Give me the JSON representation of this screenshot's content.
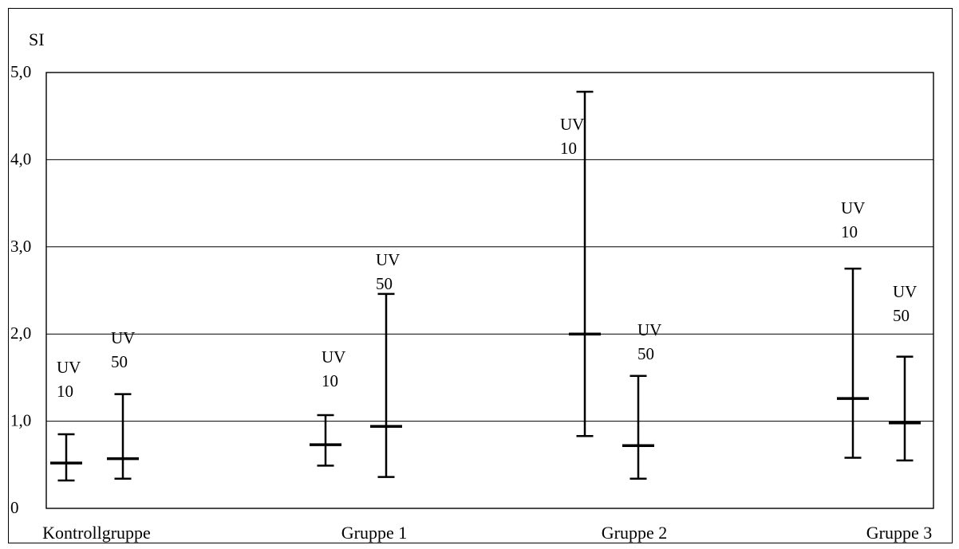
{
  "chart_data": {
    "type": "error-bar",
    "ylabel": "SI",
    "ylim": [
      0,
      5
    ],
    "yticks": [
      {
        "value": 0,
        "label": "0"
      },
      {
        "value": 1,
        "label": "1,0"
      },
      {
        "value": 2,
        "label": "2,0"
      },
      {
        "value": 3,
        "label": "3,0"
      },
      {
        "value": 4,
        "label": "4,0"
      },
      {
        "value": 5,
        "label": "5,0"
      }
    ],
    "grid": true,
    "groups": [
      {
        "category": "Kontrollgruppe",
        "bars": [
          {
            "name_line1": "UV",
            "name_line2": "10",
            "center": 0.52,
            "low": 0.32,
            "high": 0.85
          },
          {
            "name_line1": "UV",
            "name_line2": "50",
            "center": 0.57,
            "low": 0.34,
            "high": 1.31
          }
        ]
      },
      {
        "category": "Gruppe 1",
        "bars": [
          {
            "name_line1": "UV",
            "name_line2": "10",
            "center": 0.73,
            "low": 0.49,
            "high": 1.07
          },
          {
            "name_line1": "UV",
            "name_line2": "50",
            "center": 0.94,
            "low": 0.36,
            "high": 2.46
          }
        ]
      },
      {
        "category": "Gruppe 2",
        "bars": [
          {
            "name_line1": "UV",
            "name_line2": "10",
            "center": 2.0,
            "low": 0.83,
            "high": 4.78
          },
          {
            "name_line1": "UV",
            "name_line2": "50",
            "center": 0.72,
            "low": 0.34,
            "high": 1.52
          }
        ]
      },
      {
        "category": "Gruppe 3",
        "bars": [
          {
            "name_line1": "UV",
            "name_line2": "10",
            "center": 1.26,
            "low": 0.58,
            "high": 2.75
          },
          {
            "name_line1": "UV",
            "name_line2": "50",
            "center": 0.98,
            "low": 0.55,
            "high": 1.74
          }
        ]
      }
    ]
  }
}
